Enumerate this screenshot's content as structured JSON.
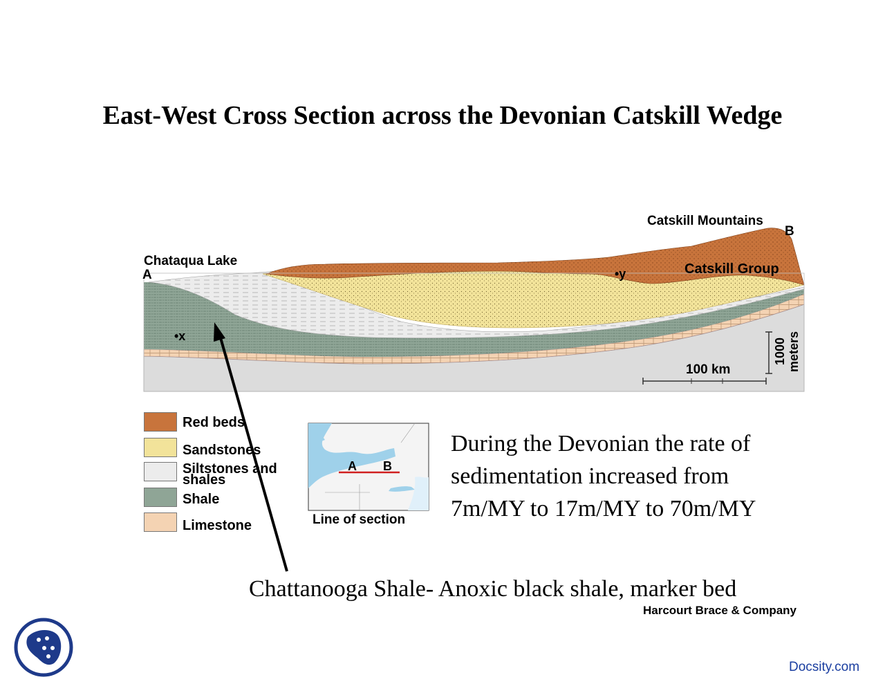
{
  "title": "East-West Cross Section across the Devonian Catskill Wedge",
  "diagram": {
    "label_west_place": "Chataqua Lake",
    "label_west_point": "A",
    "label_east_place": "Catskill Mountains",
    "label_east_point": "B",
    "label_group": "Catskill Group",
    "marker_x": "•x",
    "marker_y": "•y",
    "scale_horizontal": "100 km",
    "scale_vertical_1": "1000",
    "scale_vertical_2": "meters"
  },
  "legend": [
    {
      "label": "Red beds",
      "color": "#c8743c"
    },
    {
      "label": "Sandstones",
      "color": "#f2e39a"
    },
    {
      "label": "Siltstones and",
      "label2": "shales",
      "color": "#ececec"
    },
    {
      "label": "Shale",
      "color": "#8fa596"
    },
    {
      "label": "Limestone",
      "color": "#f4d3b3"
    }
  ],
  "inset_map": {
    "caption": "Line of section",
    "point_a": "A",
    "point_b": "B"
  },
  "sedimentation_note": {
    "line1": "During the Devonian the rate of",
    "line2": "sedimentation increased from",
    "line3": "7m/MY to 17m/MY to 70m/MY"
  },
  "arrow_caption": "Chattanooga Shale- Anoxic black shale, marker bed",
  "credit": "Harcourt Brace & Company",
  "watermark": "Docsity.com"
}
